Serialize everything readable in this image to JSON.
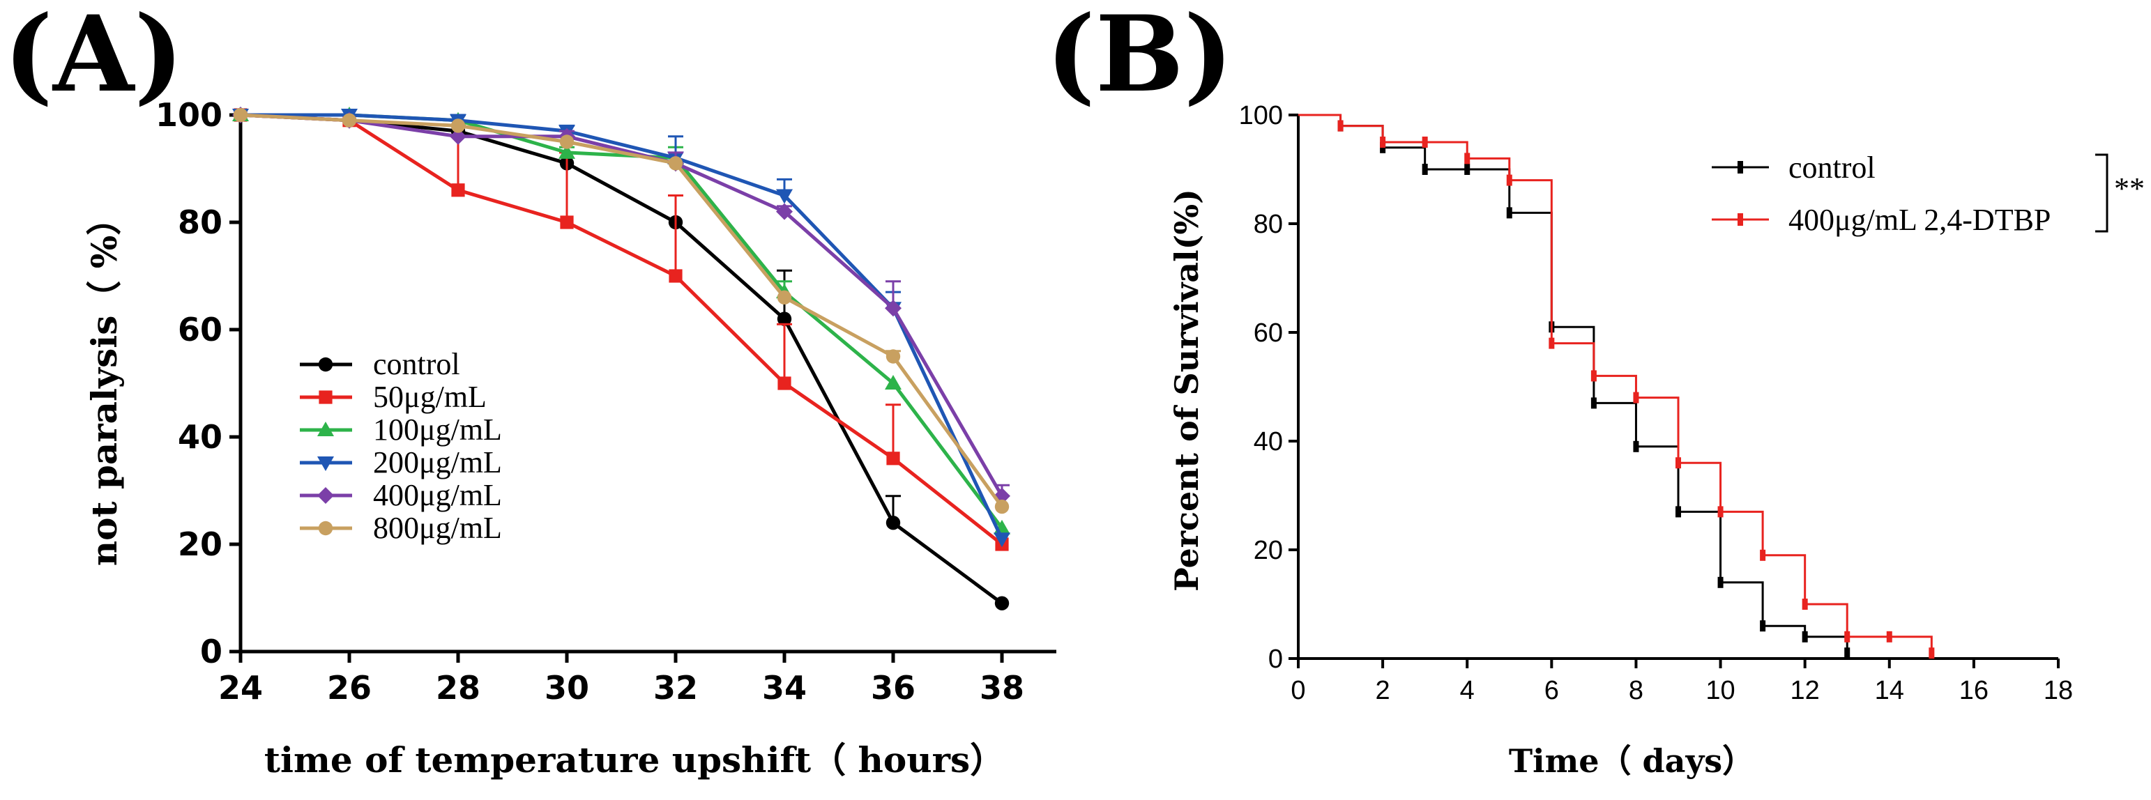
{
  "chart_data": [
    {
      "panel_label": "(A)",
      "type": "line",
      "xlabel": "time of temperature upshift（ hours）",
      "ylabel": "not paralysis（ %）",
      "xlim": [
        24,
        39
      ],
      "ylim": [
        0,
        100
      ],
      "x_ticks": [
        24,
        26,
        28,
        30,
        32,
        34,
        36,
        38
      ],
      "y_ticks": [
        0,
        20,
        40,
        60,
        80,
        100
      ],
      "x": [
        24,
        26,
        28,
        30,
        32,
        34,
        36,
        38
      ],
      "legend_position": "lower-left",
      "series": [
        {
          "name": "control",
          "color": "#000000",
          "marker": "circle",
          "values": [
            100,
            99,
            97,
            91,
            80,
            62,
            24,
            9
          ],
          "errors": [
            0,
            0,
            0,
            0,
            0,
            9,
            5,
            0
          ]
        },
        {
          "name": "50μg/mL",
          "color": "#e8231f",
          "marker": "square",
          "values": [
            100,
            99,
            86,
            80,
            70,
            50,
            36,
            20
          ],
          "errors": [
            0,
            0,
            12,
            13,
            15,
            11,
            10,
            0
          ]
        },
        {
          "name": "100μg/mL",
          "color": "#2db34a",
          "marker": "triangle-up",
          "values": [
            100,
            100,
            99,
            93,
            92,
            67,
            50,
            23
          ],
          "errors": [
            0,
            0,
            0,
            1,
            2,
            2,
            0,
            0
          ]
        },
        {
          "name": "200μg/mL",
          "color": "#1f56b4",
          "marker": "triangle-down",
          "values": [
            100,
            100,
            99,
            97,
            92,
            85,
            64,
            21
          ],
          "errors": [
            0,
            0,
            1,
            1,
            4,
            3,
            3,
            0
          ]
        },
        {
          "name": "400μg/mL",
          "color": "#7b3fa8",
          "marker": "diamond",
          "values": [
            100,
            99,
            96,
            96,
            91,
            82,
            64,
            29
          ],
          "errors": [
            0,
            0,
            0,
            1,
            2,
            1,
            5,
            2
          ]
        },
        {
          "name": "800μg/mL",
          "color": "#c8a060",
          "marker": "circle",
          "values": [
            100,
            99,
            98,
            95,
            91,
            66,
            55,
            27
          ],
          "errors": [
            0,
            0,
            0,
            0,
            0,
            0,
            1,
            0
          ]
        }
      ]
    },
    {
      "panel_label": "(B)",
      "type": "line",
      "subtype": "kaplan-meier step",
      "xlabel": "Time（ days）",
      "ylabel": "Percent of Survival(%)",
      "xlim": [
        0,
        18
      ],
      "ylim": [
        0,
        100
      ],
      "x_ticks": [
        0,
        2,
        4,
        6,
        8,
        10,
        12,
        14,
        16,
        18
      ],
      "y_ticks": [
        0,
        20,
        40,
        60,
        80,
        100
      ],
      "legend_position": "top-right",
      "significance": "**",
      "series": [
        {
          "name": "control",
          "color": "#000000",
          "steps": [
            [
              0,
              100
            ],
            [
              1,
              98
            ],
            [
              2,
              94
            ],
            [
              3,
              90
            ],
            [
              5,
              82
            ],
            [
              6,
              61
            ],
            [
              7,
              47
            ],
            [
              8,
              39
            ],
            [
              9,
              27
            ],
            [
              10,
              14
            ],
            [
              11,
              6
            ],
            [
              12,
              4
            ],
            [
              13,
              0
            ]
          ],
          "censored": [
            [
              1,
              98
            ],
            [
              2,
              94
            ],
            [
              3,
              90
            ],
            [
              4,
              90
            ],
            [
              5,
              82
            ],
            [
              6,
              61
            ],
            [
              7,
              47
            ],
            [
              8,
              39
            ],
            [
              9,
              27
            ],
            [
              10,
              14
            ],
            [
              11,
              6
            ],
            [
              12,
              4
            ],
            [
              13,
              1
            ]
          ]
        },
        {
          "name": "400μg/mL 2,4-DTBP",
          "color": "#e8231f",
          "steps": [
            [
              0,
              100
            ],
            [
              1,
              98
            ],
            [
              2,
              95
            ],
            [
              4,
              92
            ],
            [
              5,
              88
            ],
            [
              6,
              58
            ],
            [
              7,
              52
            ],
            [
              8,
              48
            ],
            [
              9,
              36
            ],
            [
              10,
              27
            ],
            [
              11,
              19
            ],
            [
              12,
              10
            ],
            [
              13,
              4
            ],
            [
              15,
              0
            ]
          ],
          "censored": [
            [
              1,
              98
            ],
            [
              2,
              95
            ],
            [
              3,
              95
            ],
            [
              4,
              92
            ],
            [
              5,
              88
            ],
            [
              6,
              58
            ],
            [
              7,
              52
            ],
            [
              8,
              48
            ],
            [
              9,
              36
            ],
            [
              10,
              27
            ],
            [
              11,
              19
            ],
            [
              12,
              10
            ],
            [
              13,
              4
            ],
            [
              14,
              4
            ],
            [
              15,
              1
            ]
          ]
        }
      ]
    }
  ]
}
